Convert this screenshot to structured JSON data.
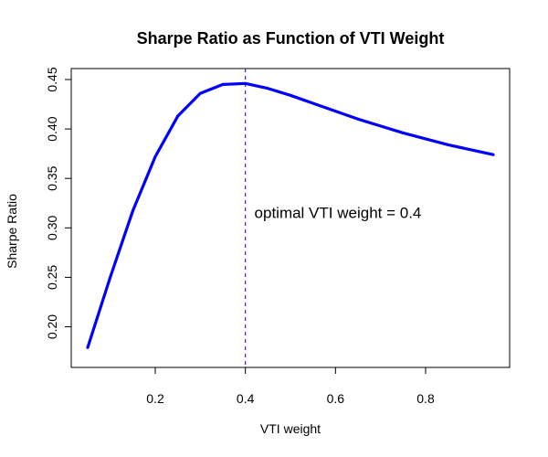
{
  "chart_data": {
    "type": "line",
    "title": "Sharpe Ratio as Function of VTI Weight",
    "xlabel": "VTI weight",
    "ylabel": "Sharpe Ratio",
    "x": [
      0.05,
      0.1,
      0.15,
      0.2,
      0.25,
      0.3,
      0.35,
      0.4,
      0.45,
      0.5,
      0.55,
      0.6,
      0.65,
      0.7,
      0.75,
      0.8,
      0.85,
      0.9,
      0.95
    ],
    "series": [
      {
        "values": [
          0.179,
          0.25,
          0.317,
          0.372,
          0.413,
          0.436,
          0.445,
          0.446,
          0.441,
          0.434,
          0.426,
          0.418,
          0.41,
          0.403,
          0.396,
          0.39,
          0.384,
          0.379,
          0.374
        ],
        "color": "#0000FF"
      }
    ],
    "xlim": [
      0.05,
      0.95
    ],
    "ylim": [
      0.17,
      0.45
    ],
    "x_ticks": [
      0.2,
      0.4,
      0.6,
      0.8
    ],
    "x_tick_labels": [
      "0.2",
      "0.4",
      "0.6",
      "0.8"
    ],
    "y_ticks": [
      0.2,
      0.25,
      0.3,
      0.35,
      0.4,
      0.45
    ],
    "y_tick_labels": [
      "0.20",
      "0.25",
      "0.30",
      "0.35",
      "0.40",
      "0.45"
    ],
    "reference_line": {
      "x": 0.4,
      "style": "dashed",
      "color": "#0000FF"
    },
    "annotation": {
      "text": "optimal VTI weight = 0.4",
      "x": 0.42,
      "y": 0.31
    },
    "grid": false,
    "legend": "none"
  }
}
